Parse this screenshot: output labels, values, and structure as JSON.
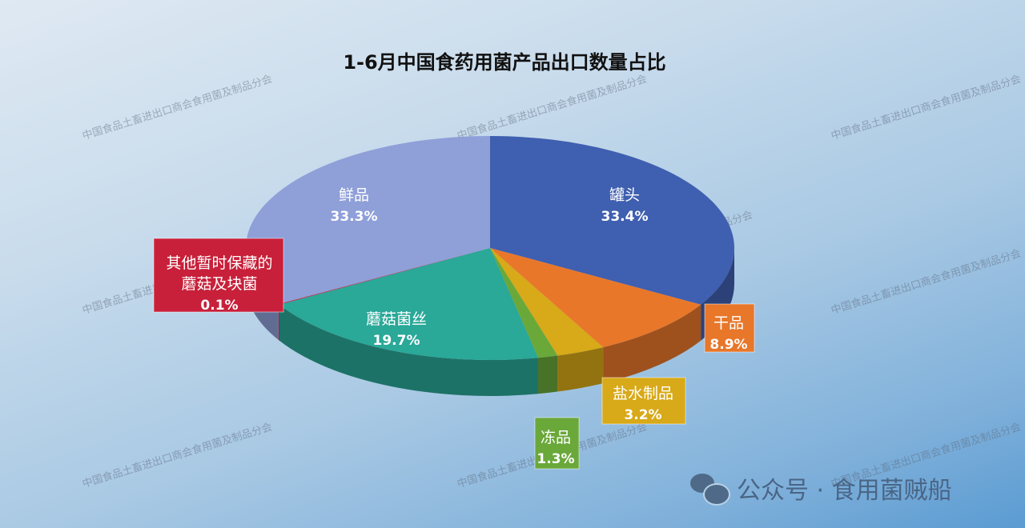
{
  "chart_data": {
    "type": "pie",
    "title": "1-6月中国食药用菌产品出口数量占比",
    "slices": [
      {
        "label": "罐头",
        "value": 33.4,
        "value_label": "33.4%",
        "color": "#3f5fb0"
      },
      {
        "label": "干品",
        "value": 8.9,
        "value_label": "8.9%",
        "color": "#e8772a"
      },
      {
        "label": "盐水制品",
        "value": 3.2,
        "value_label": "3.2%",
        "color": "#d8a918"
      },
      {
        "label": "冻品",
        "value": 1.3,
        "value_label": "1.3%",
        "color": "#6aa83a"
      },
      {
        "label": "蘑菇菌丝",
        "value": 19.7,
        "value_label": "19.7%",
        "color": "#2aa898"
      },
      {
        "label": "其他暂时保藏的蘑菇及块菌",
        "value": 0.1,
        "value_label": "0.1%",
        "color": "#c8203a"
      },
      {
        "label": "鲜品",
        "value": 33.3,
        "value_label": "33.3%",
        "color": "#8f9fd8"
      }
    ],
    "style": "3d"
  },
  "watermark": "中国食品土畜进出口商会食用菌及制品分会",
  "footer": {
    "text": "公众号 · 食用菌贼船",
    "icon": "wechat-icon"
  }
}
